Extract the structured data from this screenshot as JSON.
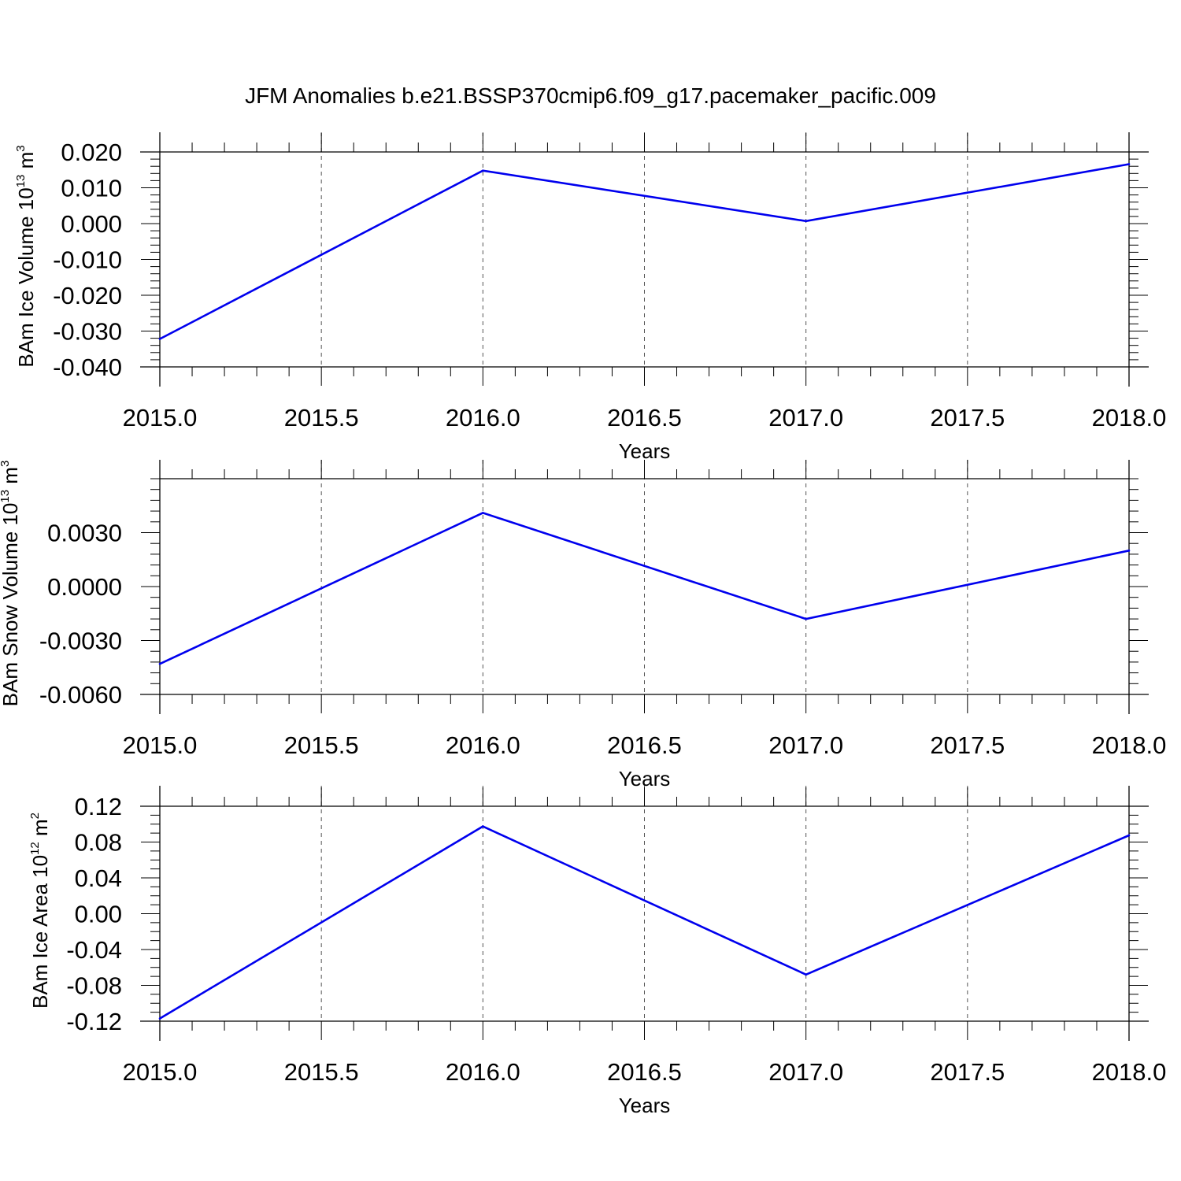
{
  "figure": {
    "title": "JFM Anomalies b.e21.BSSP370cmip6.f09_g17.pacemaker_pacific.009"
  },
  "colors": {
    "series": "#0000ee",
    "axis": "#000000",
    "grid": "#555555"
  },
  "chart_data": [
    {
      "type": "line",
      "title": "",
      "xlabel": "Years",
      "ylabel": {
        "text": "BAm Ice Volume 10",
        "exp": "13",
        "unit": " m",
        "unit_exp": "3"
      },
      "xlim": [
        2015.0,
        2018.0
      ],
      "ylim": [
        -0.04,
        0.02
      ],
      "x_ticks": [
        "2015.0",
        "2015.5",
        "2016.0",
        "2016.5",
        "2017.0",
        "2017.5",
        "2018.0"
      ],
      "y_ticks": [
        "0.020",
        "0.010",
        "0.000",
        "-0.010",
        "-0.020",
        "-0.030",
        "-0.040"
      ],
      "x_grid": "dashed vertical at 0.5 year intervals",
      "x": [
        2015,
        2016,
        2017,
        2018
      ],
      "values": [
        -0.0322,
        0.0148,
        0.0007,
        0.0166
      ]
    },
    {
      "type": "line",
      "title": "",
      "xlabel": "Years",
      "ylabel": {
        "text": "BAm Snow Volume 10",
        "exp": "13",
        "unit": " m",
        "unit_exp": "3"
      },
      "xlim": [
        2015.0,
        2018.0
      ],
      "ylim": [
        -0.006,
        0.006
      ],
      "x_ticks": [
        "2015.0",
        "2015.5",
        "2016.0",
        "2016.5",
        "2017.0",
        "2017.5",
        "2018.0"
      ],
      "y_ticks": [
        "0.0030",
        "0.0000",
        "-0.0030",
        "-0.0060"
      ],
      "x_grid": "dashed vertical at 0.5 year intervals",
      "x": [
        2015,
        2016,
        2017,
        2018
      ],
      "values": [
        -0.0043,
        0.0041,
        -0.0018,
        0.002
      ]
    },
    {
      "type": "line",
      "title": "",
      "xlabel": "Years",
      "ylabel": {
        "text": "BAm Ice Area 10",
        "exp": "12",
        "unit": " m",
        "unit_exp": "2"
      },
      "xlim": [
        2015.0,
        2018.0
      ],
      "ylim": [
        -0.12,
        0.12
      ],
      "x_ticks": [
        "2015.0",
        "2015.5",
        "2016.0",
        "2016.5",
        "2017.0",
        "2017.5",
        "2018.0"
      ],
      "y_ticks": [
        "0.12",
        "0.08",
        "0.04",
        "0.00",
        "-0.04",
        "-0.08",
        "-0.12"
      ],
      "x_grid": "dashed vertical at 0.5 year intervals",
      "x": [
        2015,
        2016,
        2017,
        2018
      ],
      "values": [
        -0.117,
        0.0975,
        -0.068,
        0.0875
      ]
    }
  ]
}
